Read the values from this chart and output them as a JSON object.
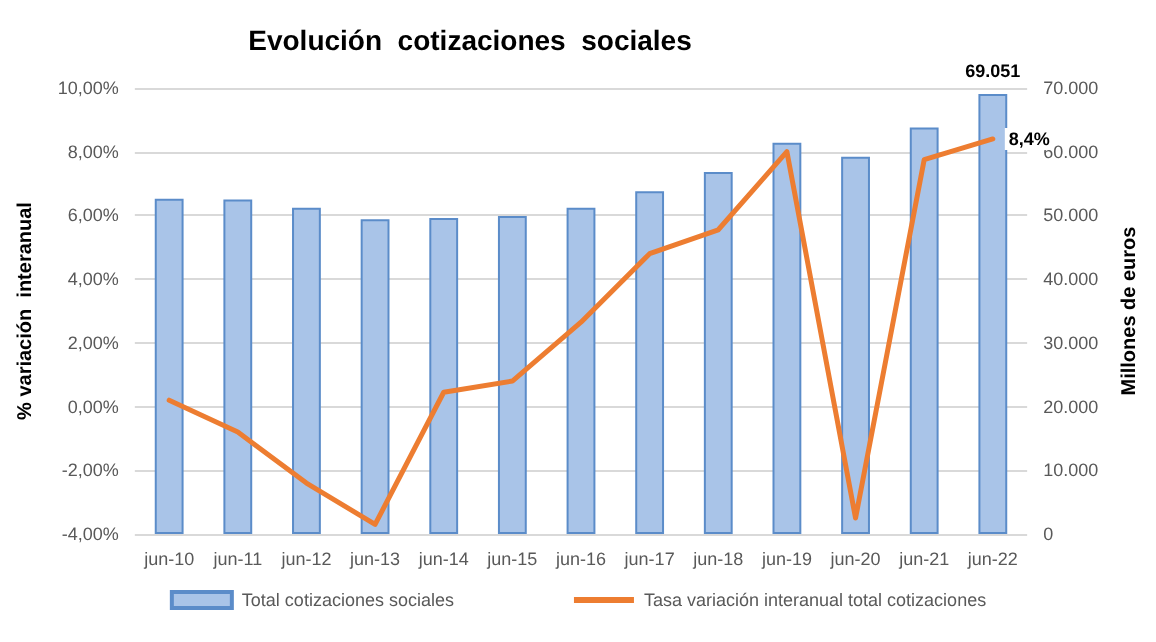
{
  "chart_data": {
    "type": "bar",
    "title": "Evolución  cotizaciones  sociales",
    "ylabel": "% variación  interanual",
    "y2label": "Millones de euros",
    "categories": [
      "jun-10",
      "jun-11",
      "jun-12",
      "jun-13",
      "jun-14",
      "jun-15",
      "jun-16",
      "jun-17",
      "jun-18",
      "jun-19",
      "jun-20",
      "jun-21",
      "jun-22"
    ],
    "series": [
      {
        "name": "Total cotizaciones sociales",
        "axis": "y2",
        "color": "#a9c4e8",
        "values": [
          52600,
          52500,
          51200,
          49400,
          49600,
          49900,
          51200,
          53800,
          56800,
          61400,
          59200,
          63800,
          69051
        ],
        "value_labels": [
          null,
          null,
          null,
          null,
          null,
          null,
          null,
          null,
          null,
          null,
          null,
          null,
          "69.051"
        ]
      },
      {
        "name": "Tasa variación interanual total cotizaciones",
        "type": "line",
        "color": "#ed7d31",
        "values": [
          0.2,
          -0.8,
          -2.4,
          -3.7,
          0.45,
          0.8,
          2.65,
          4.8,
          5.55,
          8.0,
          -3.5,
          7.75,
          8.4
        ],
        "value_labels": [
          null,
          null,
          null,
          null,
          null,
          null,
          null,
          null,
          null,
          null,
          null,
          null,
          "8,4%"
        ]
      }
    ],
    "ylim": [
      -4,
      10
    ],
    "yticks": [
      {
        "value": -4,
        "label": "-4,00%"
      },
      {
        "value": -2,
        "label": "-2,00%"
      },
      {
        "value": 0,
        "label": "0,00%"
      },
      {
        "value": 2,
        "label": "2,00%"
      },
      {
        "value": 4,
        "label": "4,00%"
      },
      {
        "value": 6,
        "label": "6,00%"
      },
      {
        "value": 8,
        "label": "8,00%"
      },
      {
        "value": 10,
        "label": "10,00%"
      }
    ],
    "y2lim": [
      0,
      70000
    ],
    "y2ticks": [
      {
        "value": 0,
        "label": "0"
      },
      {
        "value": 10000,
        "label": "10.000"
      },
      {
        "value": 20000,
        "label": "20.000"
      },
      {
        "value": 30000,
        "label": "30.000"
      },
      {
        "value": 40000,
        "label": "40.000"
      },
      {
        "value": 50000,
        "label": "50.000"
      },
      {
        "value": 60000,
        "label": "60.000"
      },
      {
        "value": 70000,
        "label": "70.000"
      }
    ],
    "grid": "y",
    "legend": "bottom",
    "marker": "none",
    "line_style": "solid"
  }
}
